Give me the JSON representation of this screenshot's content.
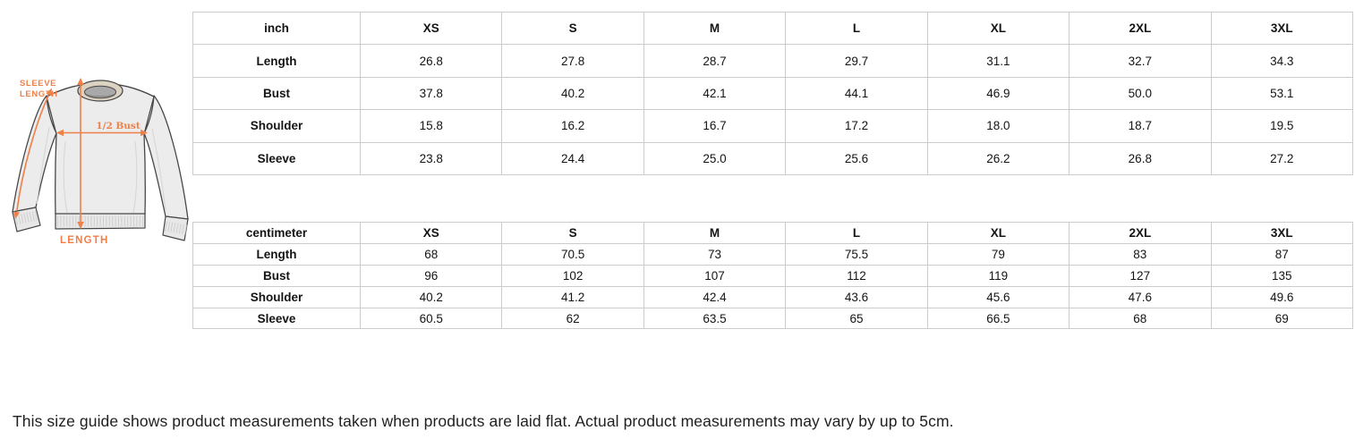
{
  "diagram": {
    "garment": "crew-neck sweatshirt flat sketch",
    "annotation_color": "#EF8049",
    "labels": {
      "sleeve_length_line1": "SLEEVE",
      "sleeve_length_line2": "LENGTH",
      "half_bust": "1/2 Bust",
      "length": "LENGTH"
    }
  },
  "tables": [
    {
      "unit": "inch",
      "sizes": [
        "XS",
        "S",
        "M",
        "L",
        "XL",
        "2XL",
        "3XL"
      ],
      "rows": [
        {
          "label": "Length",
          "values": [
            "26.8",
            "27.8",
            "28.7",
            "29.7",
            "31.1",
            "32.7",
            "34.3"
          ]
        },
        {
          "label": "Bust",
          "values": [
            "37.8",
            "40.2",
            "42.1",
            "44.1",
            "46.9",
            "50.0",
            "53.1"
          ]
        },
        {
          "label": "Shoulder",
          "values": [
            "15.8",
            "16.2",
            "16.7",
            "17.2",
            "18.0",
            "18.7",
            "19.5"
          ]
        },
        {
          "label": "Sleeve",
          "values": [
            "23.8",
            "24.4",
            "25.0",
            "25.6",
            "26.2",
            "26.8",
            "27.2"
          ]
        }
      ]
    },
    {
      "unit": "centimeter",
      "sizes": [
        "XS",
        "S",
        "M",
        "L",
        "XL",
        "2XL",
        "3XL"
      ],
      "rows": [
        {
          "label": "Length",
          "values": [
            "68",
            "70.5",
            "73",
            "75.5",
            "79",
            "83",
            "87"
          ]
        },
        {
          "label": "Bust",
          "values": [
            "96",
            "102",
            "107",
            "112",
            "119",
            "127",
            "135"
          ]
        },
        {
          "label": "Shoulder",
          "values": [
            "40.2",
            "41.2",
            "42.4",
            "43.6",
            "45.6",
            "47.6",
            "49.6"
          ]
        },
        {
          "label": "Sleeve",
          "values": [
            "60.5",
            "62",
            "63.5",
            "65",
            "66.5",
            "68",
            "69"
          ]
        }
      ]
    }
  ],
  "footnote": "This size guide shows product measurements taken when products are laid flat. Actual product measurements may vary by up to 5cm."
}
